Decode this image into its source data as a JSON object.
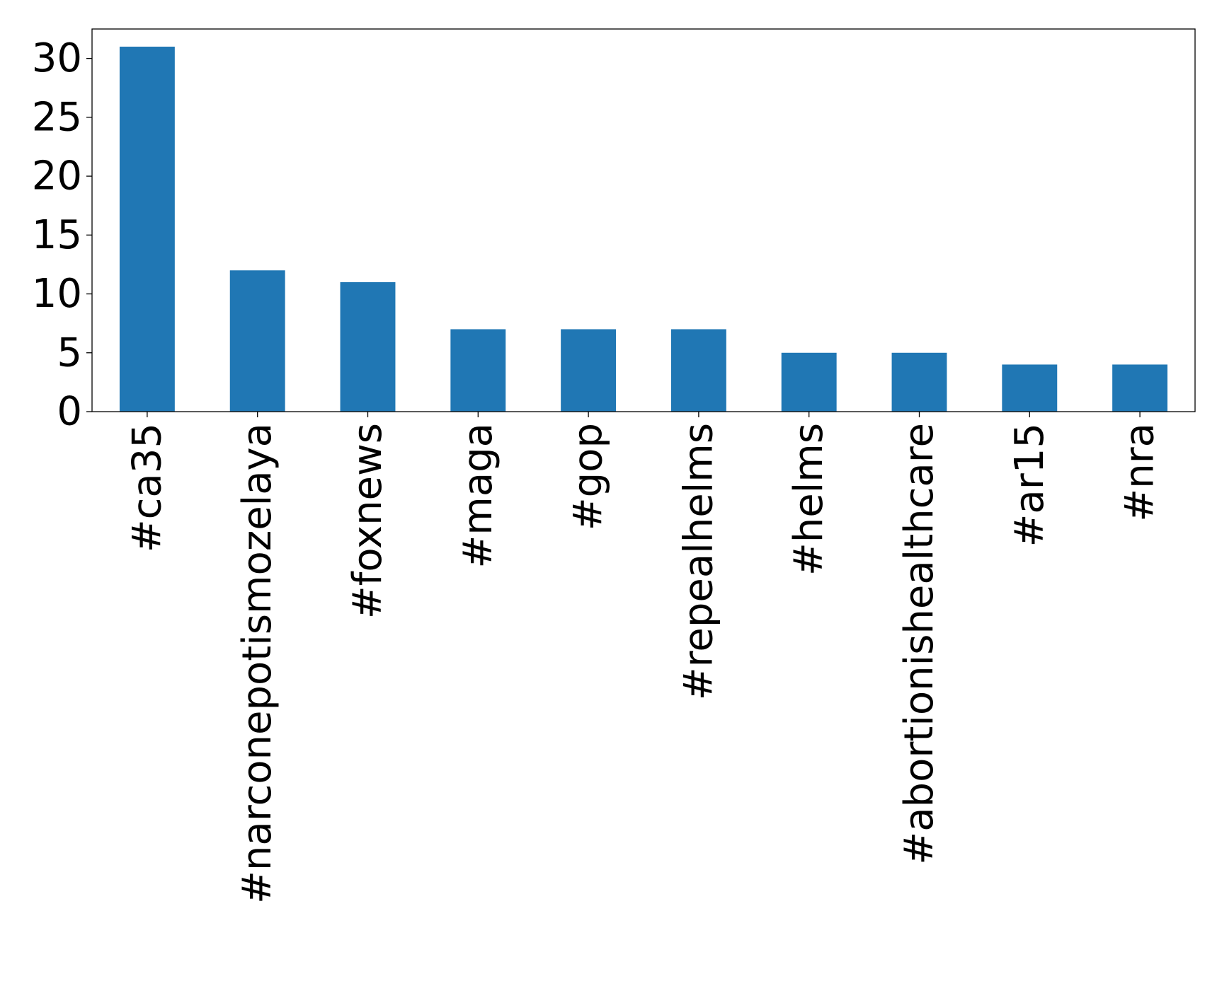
{
  "colors": {
    "bar": "#2077b4",
    "axis": "#000000",
    "background": "#ffffff"
  },
  "chart_data": {
    "type": "bar",
    "title": "",
    "xlabel": "",
    "ylabel": "",
    "categories": [
      "#ca35",
      "#narconepotismozelaya",
      "#foxnews",
      "#maga",
      "#gop",
      "#repealhelms",
      "#helms",
      "#abortionishealthcare",
      "#ar15",
      "#nra"
    ],
    "values": [
      31,
      12,
      11,
      7,
      7,
      7,
      5,
      5,
      4,
      4
    ],
    "ylim": [
      0,
      32.5
    ],
    "yticks": [
      0,
      5,
      10,
      15,
      20,
      25,
      30
    ],
    "grid": false,
    "legend": "none"
  }
}
